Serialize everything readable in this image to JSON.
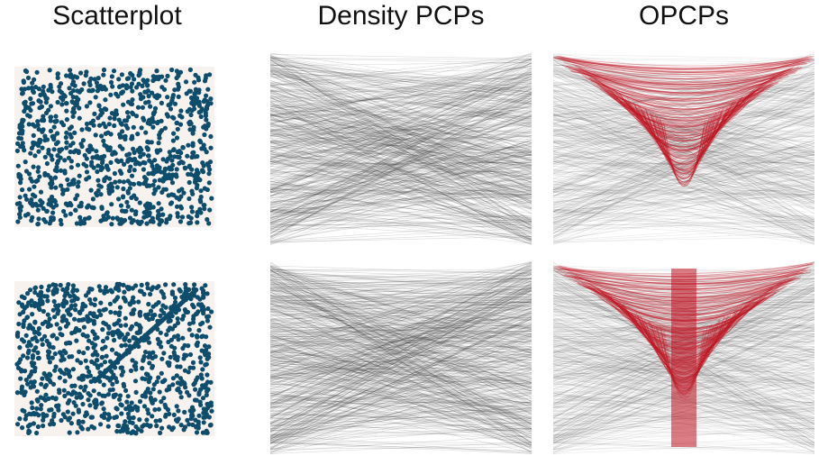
{
  "columns": [
    "Scatterplot",
    "Density PCPs",
    "OPCPs"
  ],
  "colors": {
    "point": "#0e4d6b",
    "pcp_line": "#2a2a2a",
    "opcp_highlight": "#c01020",
    "background": "#ffffff"
  },
  "chart_data": [
    {
      "type": "scatter",
      "row": 1,
      "column": "Scatterplot",
      "description_of_data": "about 1000 uniformly distributed random points in a unit square",
      "x_range": [
        0,
        1
      ],
      "y_range": [
        0,
        1
      ],
      "num_points": 1000,
      "embedded_structure": "none"
    },
    {
      "type": "scatter",
      "row": 2,
      "column": "Scatterplot",
      "x_range": [
        0,
        1
      ],
      "y_range": [
        0,
        1
      ],
      "num_points": 1000,
      "embedded_structure": "linear",
      "line_segment": {
        "x": [
          0.4,
          0.92
        ],
        "y": [
          0.35,
          0.96
        ]
      }
    },
    {
      "type": "line",
      "row": 1,
      "column": "Density PCPs",
      "axes": 2
    },
    {
      "type": "line",
      "row": 2,
      "column": "Density PCPs",
      "axes": 2
    },
    {
      "type": "line",
      "row": 1,
      "column": "OPCPs",
      "axes": 2,
      "highlight": "red"
    },
    {
      "type": "line",
      "row": 2,
      "column": "OPCPs",
      "axes": 2,
      "highlight": "red",
      "highlight_band": "center vertical"
    }
  ]
}
